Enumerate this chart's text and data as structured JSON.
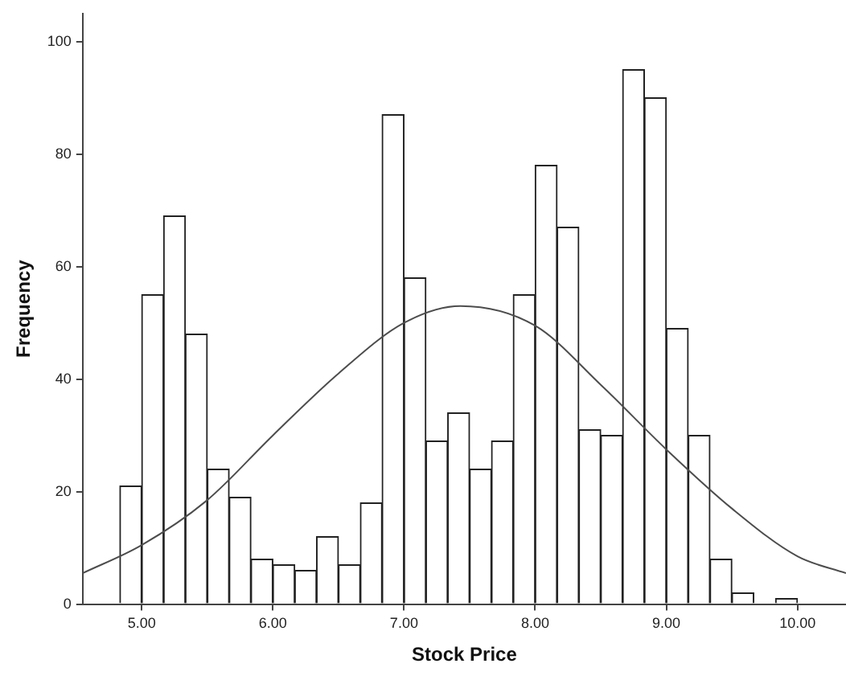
{
  "chart_data": {
    "type": "histogram",
    "xlabel": "Stock Price",
    "ylabel": "Frequency",
    "xlim": [
      4.55,
      10.37
    ],
    "ylim": [
      0,
      105
    ],
    "xticks": [
      {
        "value": 5,
        "label": "5.00"
      },
      {
        "value": 6,
        "label": "6.00"
      },
      {
        "value": 7,
        "label": "7.00"
      },
      {
        "value": 8,
        "label": "8.00"
      },
      {
        "value": 9,
        "label": "9.00"
      },
      {
        "value": 10,
        "label": "10.00"
      }
    ],
    "yticks": [
      0,
      20,
      40,
      60,
      80,
      100
    ],
    "grid": false,
    "legend": false,
    "series": [
      {
        "type": "histogram",
        "color": "#ffffff",
        "bins": [
          4.667,
          4.833,
          5.0,
          5.167,
          5.333,
          5.5,
          5.667,
          5.833,
          6.0,
          6.167,
          6.333,
          6.5,
          6.667,
          6.833,
          7.0,
          7.167,
          7.333,
          7.5,
          7.667,
          7.833,
          8.0,
          8.167,
          8.333,
          8.5,
          8.667,
          8.833,
          9.0,
          9.167,
          9.333,
          9.5,
          9.667,
          9.833,
          10.0,
          10.167,
          10.333
        ],
        "values": [
          0,
          21,
          55,
          69,
          48,
          24,
          19,
          8,
          7,
          6,
          12,
          7,
          18,
          87,
          58,
          29,
          34,
          24,
          29,
          55,
          78,
          67,
          31,
          30,
          95,
          90,
          49,
          30,
          8,
          2,
          0,
          1,
          0,
          0
        ]
      },
      {
        "type": "line",
        "color": "#4d4d4d",
        "marker": "none",
        "x": [
          4.55,
          5.0,
          5.5,
          6.0,
          6.5,
          7.0,
          7.43,
          8.0,
          8.5,
          9.0,
          9.5,
          10.0,
          10.37
        ],
        "values": [
          5.5,
          10.5,
          18.5,
          30,
          41,
          50,
          53,
          49.5,
          39,
          27.5,
          17,
          8.5,
          5.5
        ]
      }
    ]
  }
}
